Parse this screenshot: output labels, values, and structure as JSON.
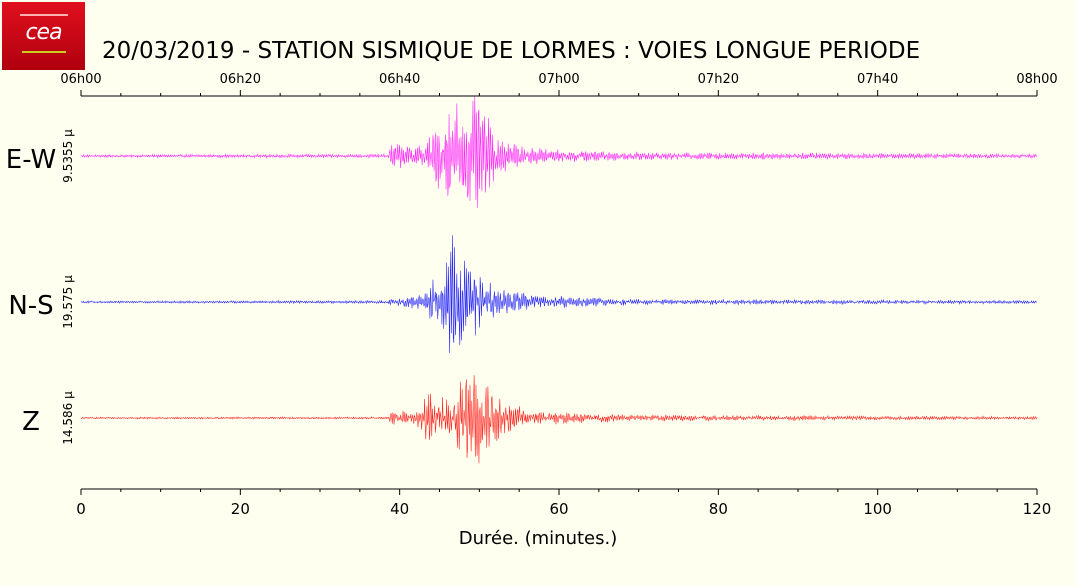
{
  "logo": {
    "text": "cea",
    "color": "#d00016"
  },
  "title": "20/03/2019  -  STATION SISMIQUE DE LORMES : VOIES LONGUE PERIODE",
  "chart_data": {
    "type": "line",
    "title": "20/03/2019  -  STATION SISMIQUE DE LORMES : VOIES LONGUE PERIODE",
    "xlabel": "Durée.  (minutes.)",
    "xlim": [
      0,
      120
    ],
    "bottom_ticks": [
      "0",
      "20",
      "40",
      "60",
      "80",
      "100",
      "120"
    ],
    "top_ticks": [
      "06h00",
      "06h20",
      "06h40",
      "07h00",
      "07h20",
      "07h40",
      "08h00"
    ],
    "event_onset_min": 39,
    "series": [
      {
        "name": "E-W",
        "scale_label": "9.5355 µ",
        "color": "#ff00ff",
        "envelope": [
          {
            "x": 0,
            "y": 0.02
          },
          {
            "x": 38.5,
            "y": 0.03
          },
          {
            "x": 39,
            "y": 0.2
          },
          {
            "x": 42,
            "y": 0.15
          },
          {
            "x": 43.5,
            "y": 0.25
          },
          {
            "x": 45,
            "y": 0.55
          },
          {
            "x": 47,
            "y": 0.9
          },
          {
            "x": 48.5,
            "y": 1.0
          },
          {
            "x": 50,
            "y": 0.85
          },
          {
            "x": 52,
            "y": 0.35
          },
          {
            "x": 55,
            "y": 0.15
          },
          {
            "x": 60,
            "y": 0.1
          },
          {
            "x": 70,
            "y": 0.06
          },
          {
            "x": 90,
            "y": 0.05
          },
          {
            "x": 120,
            "y": 0.03
          }
        ]
      },
      {
        "name": "N-S",
        "scale_label": "19.575 µ",
        "color": "#0000ff",
        "envelope": [
          {
            "x": 0,
            "y": 0.015
          },
          {
            "x": 38.5,
            "y": 0.02
          },
          {
            "x": 39,
            "y": 0.05
          },
          {
            "x": 43,
            "y": 0.12
          },
          {
            "x": 43.6,
            "y": 0.3
          },
          {
            "x": 45,
            "y": 0.3
          },
          {
            "x": 46.8,
            "y": 1.0
          },
          {
            "x": 47.5,
            "y": 0.7
          },
          {
            "x": 49.5,
            "y": 0.45
          },
          {
            "x": 52,
            "y": 0.2
          },
          {
            "x": 57,
            "y": 0.1
          },
          {
            "x": 70,
            "y": 0.04
          },
          {
            "x": 120,
            "y": 0.02
          }
        ]
      },
      {
        "name": "Z",
        "scale_label": "14.586 µ",
        "color": "#ff0000",
        "envelope": [
          {
            "x": 0,
            "y": 0.015
          },
          {
            "x": 38.5,
            "y": 0.02
          },
          {
            "x": 39,
            "y": 0.15
          },
          {
            "x": 42,
            "y": 0.12
          },
          {
            "x": 43.5,
            "y": 0.5
          },
          {
            "x": 44.5,
            "y": 0.3
          },
          {
            "x": 47,
            "y": 0.45
          },
          {
            "x": 48.6,
            "y": 1.0
          },
          {
            "x": 50.5,
            "y": 0.7
          },
          {
            "x": 53,
            "y": 0.3
          },
          {
            "x": 57,
            "y": 0.12
          },
          {
            "x": 70,
            "y": 0.06
          },
          {
            "x": 90,
            "y": 0.04
          },
          {
            "x": 120,
            "y": 0.025
          }
        ]
      }
    ]
  }
}
